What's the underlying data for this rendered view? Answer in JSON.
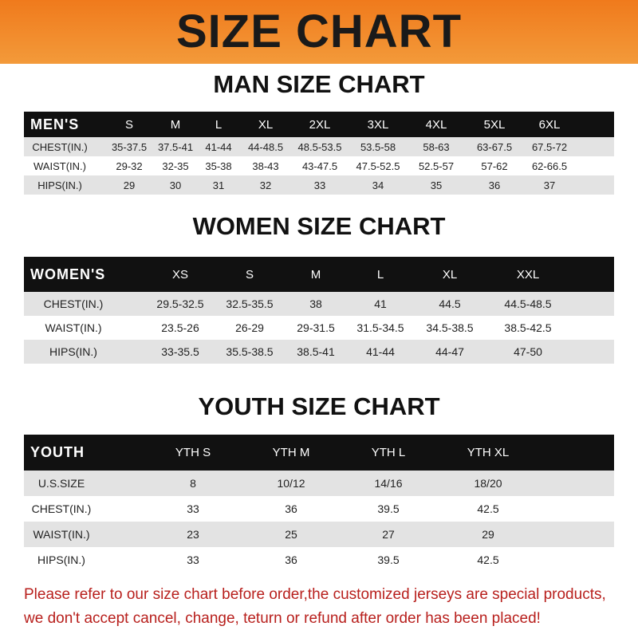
{
  "title": "SIZE CHART",
  "tables": [
    {
      "title": "MAN SIZE CHART",
      "header": "MEN'S",
      "columns": [
        "S",
        "M",
        "L",
        "XL",
        "2XL",
        "3XL",
        "4XL",
        "5XL",
        "6XL"
      ],
      "rows": [
        {
          "label": "CHEST(IN.)",
          "values": [
            "35-37.5",
            "37.5-41",
            "41-44",
            "44-48.5",
            "48.5-53.5",
            "53.5-58",
            "58-63",
            "63-67.5",
            "67.5-72"
          ]
        },
        {
          "label": "WAIST(IN.)",
          "values": [
            "29-32",
            "32-35",
            "35-38",
            "38-43",
            "43-47.5",
            "47.5-52.5",
            "52.5-57",
            "57-62",
            "62-66.5"
          ]
        },
        {
          "label": "HIPS(IN.)",
          "values": [
            "29",
            "30",
            "31",
            "32",
            "33",
            "34",
            "35",
            "36",
            "37"
          ]
        }
      ]
    },
    {
      "title": "WOMEN SIZE CHART",
      "header": "WOMEN'S",
      "columns": [
        "XS",
        "S",
        "M",
        "L",
        "XL",
        "XXL"
      ],
      "rows": [
        {
          "label": "CHEST(IN.)",
          "values": [
            "29.5-32.5",
            "32.5-35.5",
            "38",
            "41",
            "44.5",
            "44.5-48.5"
          ]
        },
        {
          "label": "WAIST(IN.)",
          "values": [
            "23.5-26",
            "26-29",
            "29-31.5",
            "31.5-34.5",
            "34.5-38.5",
            "38.5-42.5"
          ]
        },
        {
          "label": "HIPS(IN.)",
          "values": [
            "33-35.5",
            "35.5-38.5",
            "38.5-41",
            "41-44",
            "44-47",
            "47-50"
          ]
        }
      ]
    },
    {
      "title": "YOUTH SIZE CHART",
      "header": "YOUTH",
      "columns": [
        "YTH S",
        "YTH M",
        "YTH L",
        "YTH XL"
      ],
      "rows": [
        {
          "label": "U.S.SIZE",
          "values": [
            "8",
            "10/12",
            "14/16",
            "18/20"
          ]
        },
        {
          "label": "CHEST(IN.)",
          "values": [
            "33",
            "36",
            "39.5",
            "42.5"
          ]
        },
        {
          "label": "WAIST(IN.)",
          "values": [
            "23",
            "25",
            "27",
            "29"
          ]
        },
        {
          "label": "HIPS(IN.)",
          "values": [
            "33",
            "36",
            "39.5",
            "42.5"
          ]
        }
      ]
    }
  ],
  "notice": [
    "Please refer to our size chart before order,the customized jerseys are special products,",
    "we don't accept cancel, change, teturn or refund after order has been placed!"
  ],
  "colors": {
    "banner": "#f07a1c",
    "header_row": "#111111",
    "alt_row": "#e3e3e3",
    "notice": "#b8201d"
  }
}
